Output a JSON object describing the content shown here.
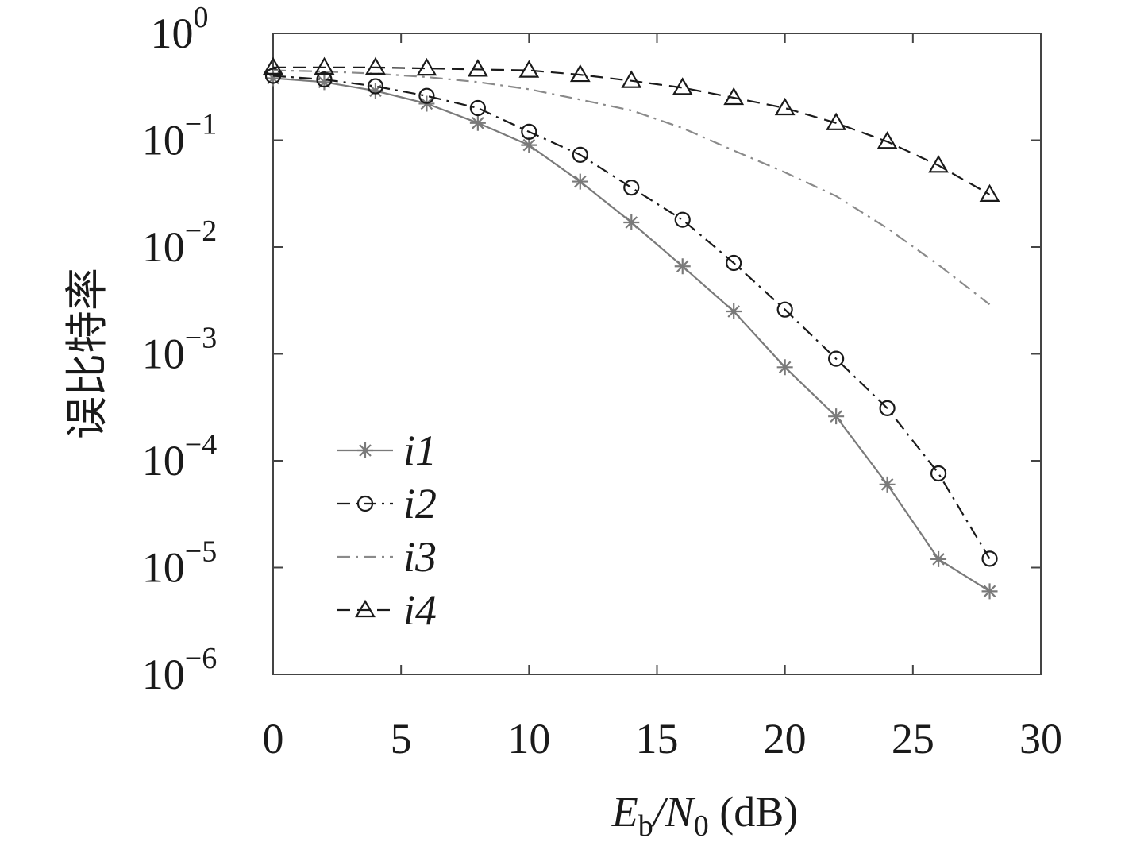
{
  "chart_data": {
    "type": "line",
    "title": "",
    "xlabel": {
      "main": "E",
      "sub": "b",
      "mid": "/N",
      "sub2": "0",
      "unit": " (dB)"
    },
    "ylabel": "误比特率",
    "xlim": [
      0,
      30
    ],
    "ylim": [
      1e-06,
      1
    ],
    "yscale": "log",
    "grid": false,
    "legend_position": "lower-left",
    "x_ticks": [
      "0",
      "5",
      "10",
      "15",
      "20",
      "25",
      "30"
    ],
    "y_ticks": [
      {
        "base": "10",
        "exp": "0"
      },
      {
        "base": "10",
        "exp": "−1"
      },
      {
        "base": "10",
        "exp": "−2"
      },
      {
        "base": "10",
        "exp": "−3"
      },
      {
        "base": "10",
        "exp": "−4"
      },
      {
        "base": "10",
        "exp": "−5"
      },
      {
        "base": "10",
        "exp": "−6"
      }
    ],
    "series": [
      {
        "name": "i1",
        "marker": "asterisk",
        "line": "solid",
        "color": "#7a7a7a",
        "x": [
          0,
          2,
          4,
          6,
          8,
          10,
          12,
          14,
          16,
          18,
          20,
          22,
          24,
          26,
          28
        ],
        "y": [
          0.38,
          0.35,
          0.29,
          0.22,
          0.145,
          0.09,
          0.041,
          0.017,
          0.0066,
          0.0025,
          0.00075,
          0.00026,
          6e-05,
          1.2e-05,
          6e-06
        ]
      },
      {
        "name": "i2",
        "marker": "circle",
        "line": "dashdot",
        "color": "#1a1a1a",
        "x": [
          0,
          2,
          4,
          6,
          8,
          10,
          12,
          14,
          16,
          18,
          20,
          22,
          24,
          26,
          28
        ],
        "y": [
          0.4,
          0.37,
          0.32,
          0.26,
          0.2,
          0.12,
          0.073,
          0.036,
          0.018,
          0.0071,
          0.0026,
          0.0009,
          0.00031,
          7.6e-05,
          1.21e-05
        ]
      },
      {
        "name": "i3",
        "marker": "none",
        "line": "dashdot",
        "color": "#8a8a8a",
        "x": [
          0,
          2,
          4,
          6,
          8,
          10,
          12,
          14,
          16,
          18,
          20,
          22,
          24,
          26,
          28
        ],
        "y": [
          0.45,
          0.44,
          0.42,
          0.39,
          0.35,
          0.3,
          0.24,
          0.19,
          0.13,
          0.08,
          0.05,
          0.03,
          0.015,
          0.0068,
          0.0029
        ]
      },
      {
        "name": "i4",
        "marker": "triangle",
        "line": "dashed",
        "color": "#1a1a1a",
        "x": [
          0,
          2,
          4,
          6,
          8,
          10,
          12,
          14,
          16,
          18,
          20,
          22,
          24,
          26,
          28
        ],
        "y": [
          0.48,
          0.48,
          0.48,
          0.47,
          0.46,
          0.45,
          0.41,
          0.36,
          0.31,
          0.25,
          0.2,
          0.145,
          0.097,
          0.058,
          0.031
        ]
      }
    ]
  }
}
